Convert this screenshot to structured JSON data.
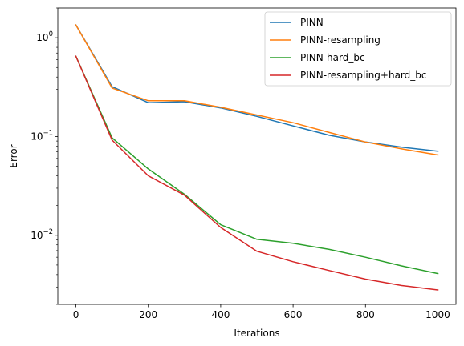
{
  "chart_data": {
    "type": "line",
    "xlabel": "Iterations",
    "ylabel": "Error",
    "yscale": "log",
    "xlim": [
      -50,
      1050
    ],
    "ylim": [
      0.002,
      2.0
    ],
    "xticks": [
      0,
      200,
      400,
      600,
      800,
      1000
    ],
    "xtick_labels": [
      "0",
      "200",
      "400",
      "600",
      "800",
      "1000"
    ],
    "yticks": [
      {
        "value": 1,
        "base": "10",
        "exp": "0"
      },
      {
        "value": 0.1,
        "base": "10",
        "exp": "−1"
      },
      {
        "value": 0.01,
        "base": "10",
        "exp": "−2"
      }
    ],
    "grid": false,
    "legend_loc": "upper right",
    "x": [
      0,
      100,
      200,
      300,
      400,
      500,
      600,
      700,
      800,
      900,
      1000
    ],
    "series": [
      {
        "name": "PINN",
        "color": "#1f77b4",
        "values": [
          1.35,
          0.32,
          0.22,
          0.225,
          0.195,
          0.16,
          0.128,
          0.103,
          0.088,
          0.078,
          0.071
        ]
      },
      {
        "name": "PINN-resampling",
        "color": "#ff7f0e",
        "values": [
          1.35,
          0.31,
          0.23,
          0.23,
          0.198,
          0.165,
          0.138,
          0.11,
          0.088,
          0.075,
          0.065
        ]
      },
      {
        "name": "PINN-hard_bc",
        "color": "#2ca02c",
        "values": [
          0.65,
          0.097,
          0.047,
          0.026,
          0.0128,
          0.0091,
          0.0083,
          0.0072,
          0.006,
          0.0049,
          0.0041
        ]
      },
      {
        "name": "PINN-resampling+hard_bc",
        "color": "#d62728",
        "values": [
          0.65,
          0.092,
          0.04,
          0.0255,
          0.012,
          0.0069,
          0.0054,
          0.0044,
          0.0036,
          0.0031,
          0.0028
        ]
      }
    ]
  }
}
